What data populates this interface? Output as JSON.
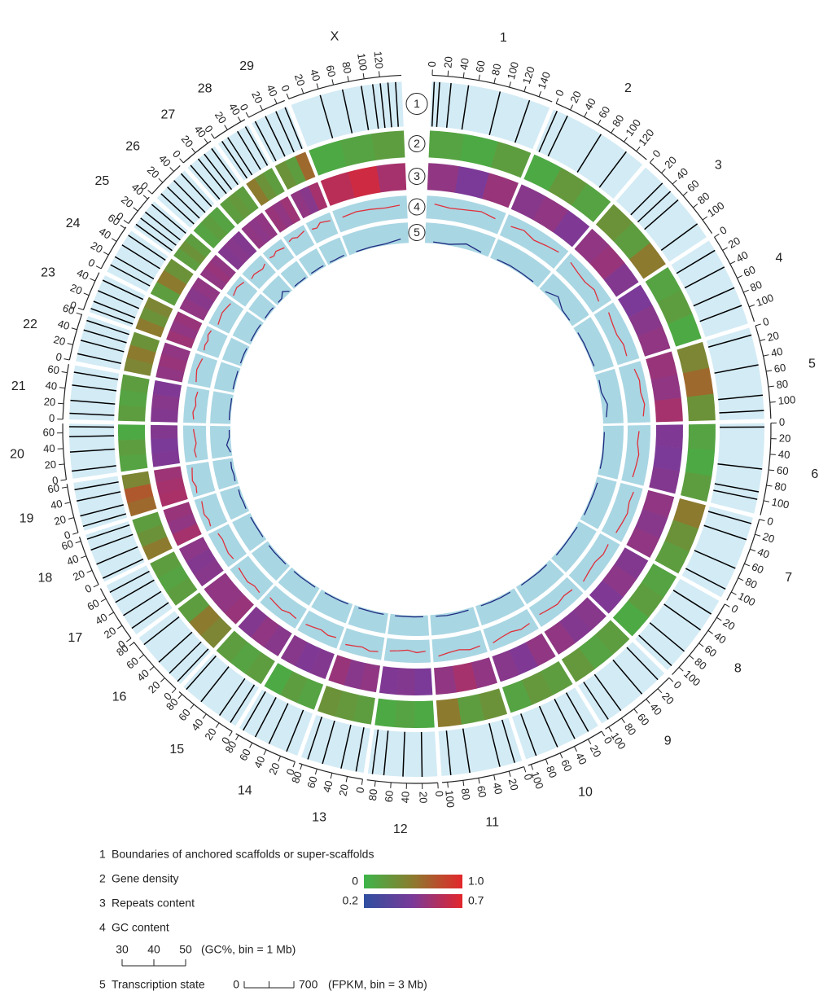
{
  "chart_data": {
    "type": "circos",
    "chromosomes": [
      {
        "name": "1",
        "length": 158,
        "ticks": [
          0,
          20,
          40,
          60,
          80,
          100,
          120,
          140
        ],
        "boundaries": [
          3,
          10,
          25,
          48,
          90,
          130
        ],
        "gene": [
          0.15,
          0.1,
          0.2
        ],
        "repeats": [
          0.5,
          0.45,
          0.52
        ],
        "gc": [
          43,
          41,
          42,
          44,
          42
        ],
        "fpkm": [
          50,
          40,
          180,
          60
        ]
      },
      {
        "name": "2",
        "length": 137,
        "ticks": [
          0,
          20,
          40,
          60,
          80,
          100,
          120
        ],
        "boundaries": [
          5,
          20,
          70,
          110
        ],
        "gene": [
          0.1,
          0.25,
          0.15
        ],
        "repeats": [
          0.48,
          0.5,
          0.46
        ],
        "gc": [
          41,
          43,
          40,
          42,
          44
        ],
        "fpkm": [
          40,
          60,
          50,
          45
        ]
      },
      {
        "name": "3",
        "length": 121,
        "ticks": [
          0,
          20,
          40,
          60,
          80,
          100
        ],
        "boundaries": [
          30,
          45,
          60,
          100
        ],
        "gene": [
          0.3,
          0.2,
          0.5
        ],
        "repeats": [
          0.5,
          0.52,
          0.47
        ],
        "gc": [
          44,
          42,
          41,
          43,
          40
        ],
        "fpkm": [
          60,
          250,
          50,
          40
        ]
      },
      {
        "name": "4",
        "length": 120,
        "ticks": [
          0,
          20,
          40,
          60,
          80,
          100
        ],
        "boundaries": [
          15,
          40,
          70,
          95
        ],
        "gene": [
          0.15,
          0.2,
          0.1
        ],
        "repeats": [
          0.45,
          0.48,
          0.5
        ],
        "gc": [
          42,
          40,
          39,
          41,
          40
        ],
        "fpkm": [
          45,
          50,
          40,
          60
        ]
      },
      {
        "name": "5",
        "length": 121,
        "ticks": [
          0,
          20,
          40,
          60,
          80,
          100
        ],
        "boundaries": [
          10,
          50,
          90,
          110
        ],
        "gene": [
          0.4,
          0.6,
          0.3
        ],
        "repeats": [
          0.52,
          0.5,
          0.55
        ],
        "gc": [
          43,
          45,
          44,
          46,
          44
        ],
        "fpkm": [
          80,
          60,
          200,
          120
        ]
      },
      {
        "name": "6",
        "length": 119,
        "ticks": [
          0,
          20,
          40,
          60,
          80,
          100
        ],
        "boundaries": [
          5,
          60,
          90,
          100
        ],
        "gene": [
          0.15,
          0.1,
          0.2
        ],
        "repeats": [
          0.46,
          0.45,
          0.47
        ],
        "gc": [
          40,
          39,
          41,
          40,
          39
        ],
        "fpkm": [
          40,
          35,
          50,
          40
        ]
      },
      {
        "name": "7",
        "length": 112,
        "ticks": [
          0,
          20,
          40,
          60,
          80,
          100
        ],
        "boundaries": [
          8,
          30,
          70,
          100
        ],
        "gene": [
          0.5,
          0.3,
          0.2
        ],
        "repeats": [
          0.5,
          0.48,
          0.5
        ],
        "gc": [
          43,
          42,
          44,
          43,
          42
        ],
        "fpkm": [
          70,
          60,
          50,
          60
        ]
      },
      {
        "name": "8",
        "length": 113,
        "ticks": [
          0,
          20,
          40,
          60,
          80,
          100
        ],
        "boundaries": [
          20,
          45,
          80,
          105
        ],
        "gene": [
          0.15,
          0.2,
          0.1
        ],
        "repeats": [
          0.47,
          0.49,
          0.46
        ],
        "gc": [
          41,
          42,
          40,
          41,
          43
        ],
        "fpkm": [
          50,
          40,
          45,
          55
        ]
      },
      {
        "name": "9",
        "length": 105,
        "ticks": [
          0,
          20,
          40,
          60,
          80,
          100
        ],
        "boundaries": [
          12,
          40,
          75,
          95
        ],
        "gene": [
          0.2,
          0.15,
          0.25
        ],
        "repeats": [
          0.48,
          0.47,
          0.5
        ],
        "gc": [
          41,
          40,
          42,
          41,
          40
        ],
        "fpkm": [
          45,
          50,
          40,
          45
        ]
      },
      {
        "name": "10",
        "length": 104,
        "ticks": [
          0,
          20,
          40,
          60,
          80,
          100
        ],
        "boundaries": [
          15,
          35,
          60,
          90
        ],
        "gene": [
          0.2,
          0.25,
          0.15
        ],
        "repeats": [
          0.5,
          0.46,
          0.48
        ],
        "gc": [
          42,
          43,
          41,
          42,
          44
        ],
        "fpkm": [
          50,
          60,
          55,
          50
        ]
      },
      {
        "name": "11",
        "length": 107,
        "ticks": [
          0,
          20,
          40,
          60,
          80,
          100
        ],
        "boundaries": [
          10,
          30,
          70,
          95
        ],
        "gene": [
          0.3,
          0.2,
          0.5
        ],
        "repeats": [
          0.5,
          0.55,
          0.5
        ],
        "gc": [
          43,
          44,
          42,
          43,
          45
        ],
        "fpkm": [
          60,
          70,
          80,
          55
        ]
      },
      {
        "name": "12",
        "length": 91,
        "ticks": [
          0,
          20,
          40,
          60,
          80
        ],
        "boundaries": [
          20,
          45,
          70,
          85
        ],
        "gene": [
          0.1,
          0.15,
          0.1
        ],
        "repeats": [
          0.45,
          0.47,
          0.46
        ],
        "gc": [
          40,
          41,
          39,
          40,
          41
        ],
        "fpkm": [
          40,
          45,
          40,
          50
        ]
      },
      {
        "name": "13",
        "length": 84,
        "ticks": [
          0,
          20,
          40,
          60,
          80
        ],
        "boundaries": [
          10,
          30,
          55,
          75
        ],
        "gene": [
          0.2,
          0.25,
          0.3
        ],
        "repeats": [
          0.5,
          0.48,
          0.52
        ],
        "gc": [
          43,
          44,
          42,
          43,
          44
        ],
        "fpkm": [
          55,
          60,
          50,
          55
        ]
      },
      {
        "name": "14",
        "length": 84,
        "ticks": [
          0,
          20,
          40,
          60,
          80
        ],
        "boundaries": [
          15,
          40,
          60,
          78
        ],
        "gene": [
          0.15,
          0.2,
          0.1
        ],
        "repeats": [
          0.47,
          0.46,
          0.48
        ],
        "gc": [
          41,
          42,
          40,
          41,
          42
        ],
        "fpkm": [
          45,
          50,
          45,
          40
        ]
      },
      {
        "name": "15",
        "length": 85,
        "ticks": [
          0,
          20,
          40,
          60,
          80
        ],
        "boundaries": [
          8,
          25,
          55,
          80
        ],
        "gene": [
          0.2,
          0.15,
          0.2
        ],
        "repeats": [
          0.48,
          0.5,
          0.47
        ],
        "gc": [
          42,
          41,
          43,
          42,
          41
        ],
        "fpkm": [
          50,
          45,
          55,
          50
        ]
      },
      {
        "name": "16",
        "length": 81,
        "ticks": [
          0,
          20,
          40,
          60,
          80
        ],
        "boundaries": [
          5,
          20,
          40,
          70
        ],
        "gene": [
          0.4,
          0.5,
          0.2
        ],
        "repeats": [
          0.52,
          0.5,
          0.5
        ],
        "gc": [
          44,
          43,
          45,
          44,
          43
        ],
        "fpkm": [
          60,
          55,
          65,
          60
        ]
      },
      {
        "name": "17",
        "length": 75,
        "ticks": [
          0,
          20,
          40,
          60
        ],
        "boundaries": [
          10,
          30,
          50,
          65
        ],
        "gene": [
          0.2,
          0.15,
          0.2
        ],
        "repeats": [
          0.48,
          0.47,
          0.49
        ],
        "gc": [
          42,
          43,
          42,
          41,
          42
        ],
        "fpkm": [
          50,
          45,
          50,
          55
        ]
      },
      {
        "name": "18",
        "length": 66,
        "ticks": [
          0,
          20,
          40,
          60
        ],
        "boundaries": [
          5,
          25,
          45,
          60
        ],
        "gene": [
          0.5,
          0.3,
          0.2
        ],
        "repeats": [
          0.55,
          0.5,
          0.52
        ],
        "gc": [
          45,
          44,
          46,
          45,
          44
        ],
        "fpkm": [
          70,
          60,
          80,
          60
        ]
      },
      {
        "name": "19",
        "length": 64,
        "ticks": [
          0,
          20,
          40,
          60
        ],
        "boundaries": [
          6,
          20,
          40,
          55
        ],
        "gene": [
          0.6,
          0.7,
          0.4
        ],
        "repeats": [
          0.56,
          0.55,
          0.53
        ],
        "gc": [
          46,
          45,
          47,
          46,
          45
        ],
        "fpkm": [
          90,
          70,
          100,
          80
        ]
      },
      {
        "name": "20",
        "length": 72,
        "ticks": [
          0,
          20,
          40,
          60
        ],
        "boundaries": [
          10,
          35,
          55,
          68
        ],
        "gene": [
          0.15,
          0.2,
          0.1
        ],
        "repeats": [
          0.46,
          0.45,
          0.47
        ],
        "gc": [
          40,
          41,
          39,
          40,
          41
        ],
        "fpkm": [
          40,
          150,
          45,
          40
        ]
      },
      {
        "name": "21",
        "length": 71,
        "ticks": [
          0,
          20,
          40,
          60
        ],
        "boundaries": [
          8,
          25,
          45,
          62
        ],
        "gene": [
          0.2,
          0.15,
          0.2
        ],
        "repeats": [
          0.47,
          0.48,
          0.46
        ],
        "gc": [
          41,
          42,
          40,
          41,
          40
        ],
        "fpkm": [
          45,
          50,
          40,
          45
        ]
      },
      {
        "name": "22",
        "length": 61,
        "ticks": [
          0,
          20,
          40,
          60
        ],
        "boundaries": [
          10,
          28,
          42,
          55
        ],
        "gene": [
          0.4,
          0.5,
          0.3
        ],
        "repeats": [
          0.5,
          0.52,
          0.5
        ],
        "gc": [
          43,
          44,
          45,
          44,
          43
        ],
        "fpkm": [
          55,
          60,
          55,
          60
        ]
      },
      {
        "name": "23",
        "length": 52,
        "ticks": [
          0,
          20,
          40
        ],
        "boundaries": [
          5,
          15,
          30,
          45
        ],
        "gene": [
          0.5,
          0.3,
          0.4
        ],
        "repeats": [
          0.53,
          0.5,
          0.52
        ],
        "gc": [
          44,
          45,
          44,
          46,
          45
        ],
        "fpkm": [
          60,
          65,
          70,
          60
        ]
      },
      {
        "name": "24",
        "length": 62,
        "ticks": [
          0,
          20,
          40,
          60
        ],
        "boundaries": [
          10,
          22,
          40,
          55
        ],
        "gene": [
          0.2,
          0.5,
          0.3
        ],
        "repeats": [
          0.5,
          0.48,
          0.5
        ],
        "gc": [
          42,
          43,
          44,
          43,
          42
        ],
        "fpkm": [
          50,
          55,
          60,
          50
        ]
      },
      {
        "name": "25",
        "length": 43,
        "ticks": [
          0,
          20,
          40
        ],
        "boundaries": [
          5,
          15,
          25,
          38
        ],
        "gene": [
          0.2,
          0.3,
          0.2
        ],
        "repeats": [
          0.5,
          0.52,
          0.5
        ],
        "gc": [
          44,
          45,
          46,
          45,
          44
        ],
        "fpkm": [
          55,
          60,
          65,
          55
        ]
      },
      {
        "name": "26",
        "length": 51,
        "ticks": [
          0,
          20,
          40
        ],
        "boundaries": [
          8,
          20,
          32,
          45
        ],
        "gene": [
          0.15,
          0.2,
          0.15
        ],
        "repeats": [
          0.47,
          0.48,
          0.47
        ],
        "gc": [
          41,
          42,
          41,
          40,
          42
        ],
        "fpkm": [
          45,
          50,
          200,
          45
        ]
      },
      {
        "name": "27",
        "length": 45,
        "ticks": [
          0,
          20,
          40
        ],
        "boundaries": [
          5,
          18,
          28,
          40
        ],
        "gene": [
          0.2,
          0.25,
          0.2
        ],
        "repeats": [
          0.5,
          0.49,
          0.5
        ],
        "gc": [
          43,
          42,
          44,
          43,
          42
        ],
        "fpkm": [
          50,
          55,
          50,
          55
        ]
      },
      {
        "name": "28",
        "length": 46,
        "ticks": [
          0,
          20,
          40
        ],
        "boundaries": [
          6,
          15,
          30,
          42
        ],
        "gene": [
          0.5,
          0.3,
          0.2
        ],
        "repeats": [
          0.52,
          0.5,
          0.53
        ],
        "gc": [
          44,
          45,
          43,
          44,
          45
        ],
        "fpkm": [
          60,
          55,
          65,
          60
        ]
      },
      {
        "name": "29",
        "length": 51,
        "ticks": [
          0,
          20,
          40
        ],
        "boundaries": [
          5,
          20,
          35,
          48
        ],
        "gene": [
          0.3,
          0.2,
          0.6
        ],
        "repeats": [
          0.5,
          0.48,
          0.55
        ],
        "gc": [
          43,
          42,
          45,
          44,
          43
        ],
        "fpkm": [
          55,
          50,
          60,
          70
        ]
      },
      {
        "name": "X",
        "length": 148,
        "ticks": [
          0,
          20,
          40,
          60,
          80,
          100,
          120
        ],
        "boundaries": [
          40,
          70,
          95,
          110,
          120,
          130,
          140
        ],
        "gene": [
          0.1,
          0.15,
          0.2
        ],
        "repeats": [
          0.6,
          0.65,
          0.55
        ],
        "gc": [
          42,
          43,
          42,
          41,
          42
        ],
        "fpkm": [
          40,
          45,
          50,
          150
        ]
      }
    ],
    "tracks": [
      {
        "id": "1",
        "name": "Boundaries of anchored scaffolds or super-scaffolds"
      },
      {
        "id": "2",
        "name": "Gene density"
      },
      {
        "id": "3",
        "name": "Repeats content"
      },
      {
        "id": "4",
        "name": "GC content"
      },
      {
        "id": "5",
        "name": "Transcription state"
      }
    ],
    "gene_scale": [
      0,
      {
        "value": 1,
        "label": "1.0"
      }
    ],
    "gene_colors": [
      "#3db54a",
      "#8c7a2e",
      "#e3262b"
    ],
    "repeat_scale": [
      0.2,
      0.7
    ],
    "repeat_colors": [
      "#2f4fa0",
      "#7b3a98",
      "#e3262b"
    ],
    "gc_scale": [
      30,
      40,
      50
    ],
    "gc_note": "(GC%, bin = 1 Mb)",
    "fpkm_scale": [
      0,
      700
    ],
    "fpkm_note": "(FPKM, bin = 3 Mb)"
  }
}
